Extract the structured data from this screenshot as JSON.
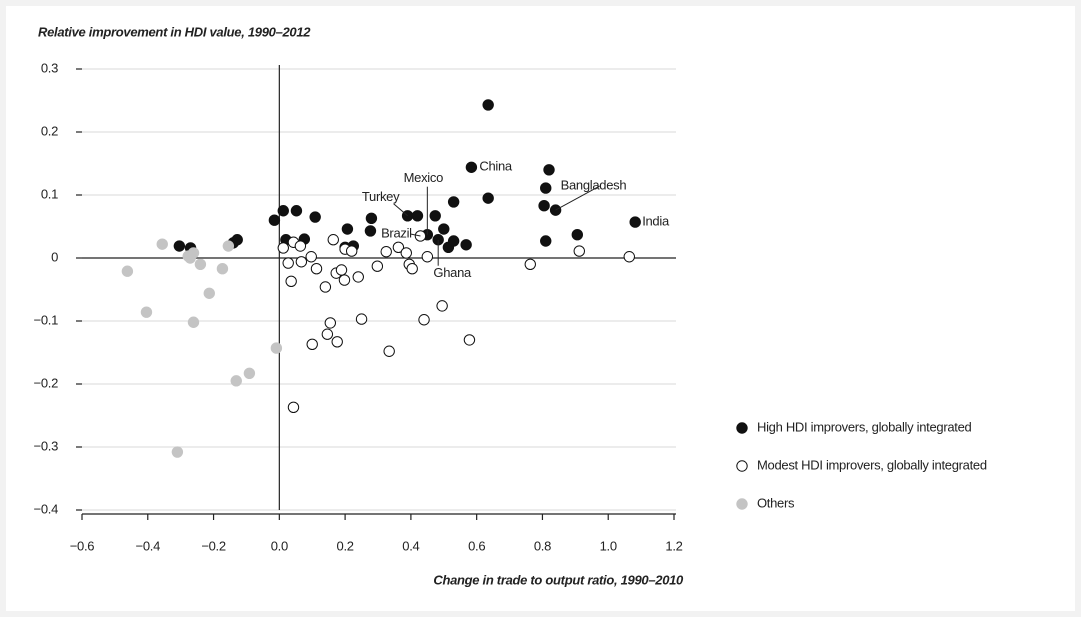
{
  "chart_data": {
    "type": "scatter",
    "title": "Relative improvement in HDI value, 1990–2012",
    "x_label": "Change in trade to output ratio, 1990–2010",
    "xlim": [
      -0.6,
      1.2
    ],
    "ylim": [
      -0.4,
      0.3
    ],
    "xticks": [
      {
        "value": -0.6,
        "label": "−0.6"
      },
      {
        "value": -0.4,
        "label": "−0.4"
      },
      {
        "value": -0.2,
        "label": "−0.2"
      },
      {
        "value": 0,
        "label": "0.0"
      },
      0.2,
      0.4,
      0.6,
      0.8,
      {
        "value": 1,
        "label": "1.0"
      },
      1.2
    ],
    "yticks": [
      {
        "value": -0.4,
        "label": "−0.4"
      },
      {
        "value": -0.3,
        "label": "−0.3"
      },
      {
        "value": -0.2,
        "label": "−0.2"
      },
      {
        "value": -0.1,
        "label": "−0.1"
      },
      0,
      0.1,
      0.2,
      0.3
    ],
    "grid": true,
    "legend": "right",
    "series": [
      {
        "name": "High HDI improvers, globally integrated",
        "color": "#111111",
        "edge": "#111111",
        "x": [
          -0.304,
          -0.27,
          -0.14,
          -0.128,
          -0.015,
          0.012,
          0.02,
          0.052,
          0.076,
          0.109,
          0.207,
          0.2,
          0.225,
          0.28,
          0.277,
          0.39,
          0.42,
          0.45,
          0.474,
          0.483,
          0.5,
          0.514,
          0.53,
          0.53,
          0.568,
          0.584,
          0.635,
          0.635,
          0.805,
          0.81,
          0.81,
          0.82,
          0.84,
          0.906,
          1.082
        ],
        "y": [
          0.019,
          0.016,
          0.024,
          0.029,
          0.06,
          0.075,
          0.029,
          0.075,
          0.03,
          0.065,
          0.046,
          0.017,
          0.019,
          0.063,
          0.043,
          0.067,
          0.067,
          0.037,
          0.067,
          0.029,
          0.046,
          0.017,
          0.089,
          0.027,
          0.021,
          0.144,
          0.243,
          0.095,
          0.083,
          0.027,
          0.111,
          0.14,
          0.076,
          0.037,
          0.057
        ]
      },
      {
        "name": "Modest HDI improvers, globally integrated",
        "color": "#ffffff",
        "edge": "#111111",
        "x": [
          0.012,
          0.043,
          0.064,
          0.027,
          0.036,
          0.067,
          0.097,
          0.113,
          0.1,
          0.043,
          0.14,
          0.155,
          0.146,
          0.164,
          0.173,
          0.176,
          0.189,
          0.198,
          0.2,
          0.22,
          0.24,
          0.25,
          0.298,
          0.325,
          0.334,
          0.362,
          0.386,
          0.395,
          0.404,
          0.429,
          0.44,
          0.45,
          0.495,
          0.578,
          0.763,
          0.912,
          1.064
        ],
        "y": [
          0.016,
          0.025,
          0.019,
          -0.008,
          -0.037,
          -0.006,
          0.002,
          -0.017,
          -0.137,
          -0.237,
          -0.046,
          -0.103,
          -0.121,
          0.029,
          -0.024,
          -0.133,
          -0.019,
          -0.035,
          0.014,
          0.011,
          -0.03,
          -0.097,
          -0.013,
          0.01,
          -0.148,
          0.017,
          0.008,
          -0.01,
          -0.017,
          0.035,
          -0.098,
          0.002,
          -0.076,
          -0.13,
          -0.01,
          0.011,
          0.002
        ]
      },
      {
        "name": "Others",
        "color": "#c4c4c4",
        "edge": "#c4c4c4",
        "x": [
          -0.356,
          -0.462,
          -0.404,
          -0.31,
          -0.277,
          -0.271,
          -0.261,
          -0.261,
          -0.24,
          -0.213,
          -0.173,
          -0.155,
          -0.131,
          -0.091,
          -0.009
        ],
        "y": [
          0.022,
          -0.021,
          -0.086,
          -0.308,
          0.003,
          0,
          0.008,
          -0.102,
          -0.01,
          -0.056,
          -0.017,
          0.019,
          -0.195,
          -0.183,
          -0.143
        ]
      }
    ],
    "annotations": [
      {
        "text": "China",
        "x": 0.584,
        "y": 0.144
      },
      {
        "text": "Bangladesh",
        "x": 0.84,
        "y": 0.076
      },
      {
        "text": "India",
        "x": 1.082,
        "y": 0.057
      },
      {
        "text": "Mexico",
        "x": 0.45,
        "y": 0.037
      },
      {
        "text": "Turkey",
        "x": 0.39,
        "y": 0.067
      },
      {
        "text": "Brazil",
        "x": 0.429,
        "y": 0.035
      },
      {
        "text": "Ghana",
        "x": 0.483,
        "y": 0.029
      }
    ]
  }
}
